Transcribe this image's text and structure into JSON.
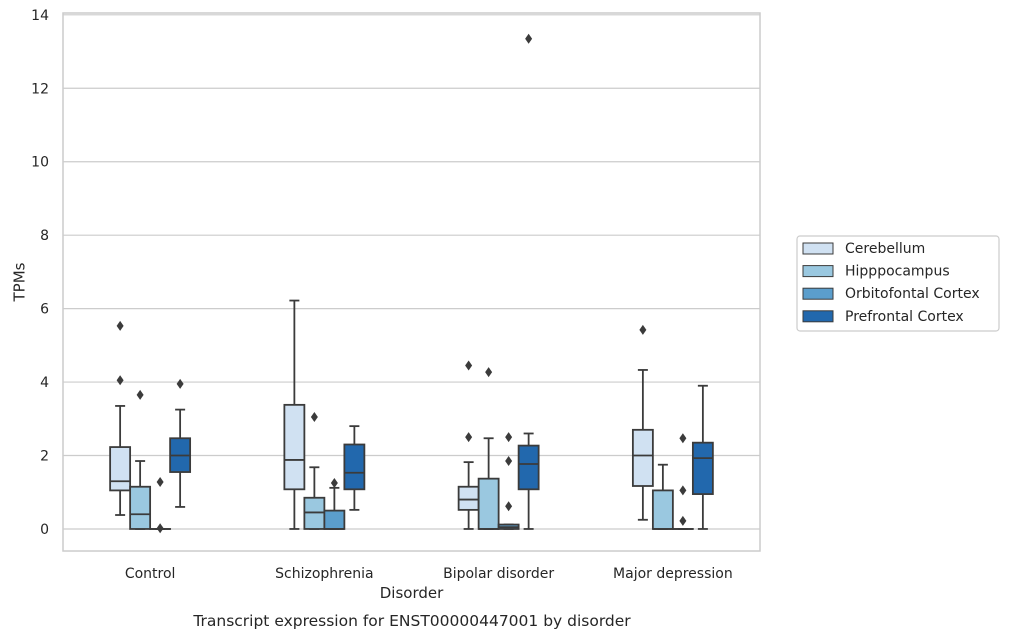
{
  "chart_data": {
    "type": "box",
    "caption": "Transcript expression for ENST00000447001 by disorder",
    "xlabel": "Disorder",
    "ylabel": "TPMs",
    "ylim": [
      -0.6,
      14.05
    ],
    "yticks": [
      0,
      2,
      4,
      6,
      8,
      10,
      12,
      14
    ],
    "grid": "horizontal",
    "legend_position": "right",
    "categories": [
      "Control",
      "Schizophrenia",
      "Bipolar disorder",
      "Major depression"
    ],
    "series": [
      {
        "name": "Cerebellum",
        "color": "#d0e1f2",
        "boxes": [
          {
            "whislo": 0.38,
            "q1": 1.05,
            "med": 1.3,
            "q3": 2.23,
            "whishi": 3.35,
            "fliers": [
              4.05,
              5.53
            ]
          },
          {
            "whislo": 0.0,
            "q1": 1.08,
            "med": 1.88,
            "q3": 3.38,
            "whishi": 6.22,
            "fliers": []
          },
          {
            "whislo": 0.0,
            "q1": 0.52,
            "med": 0.8,
            "q3": 1.15,
            "whishi": 1.82,
            "fliers": [
              2.5,
              4.45
            ]
          },
          {
            "whislo": 0.25,
            "q1": 1.17,
            "med": 2.0,
            "q3": 2.7,
            "whishi": 4.33,
            "fliers": [
              5.42
            ]
          }
        ]
      },
      {
        "name": "Hipppocampus",
        "color": "#9ac8e0",
        "boxes": [
          {
            "whislo": 0.0,
            "q1": 0.0,
            "med": 0.4,
            "q3": 1.15,
            "whishi": 1.85,
            "fliers": [
              3.65
            ]
          },
          {
            "whislo": 0.0,
            "q1": 0.0,
            "med": 0.45,
            "q3": 0.85,
            "whishi": 1.68,
            "fliers": [
              3.05
            ]
          },
          {
            "whislo": 0.0,
            "q1": 0.0,
            "med": 0.0,
            "q3": 1.37,
            "whishi": 2.47,
            "fliers": [
              4.27
            ]
          },
          {
            "whislo": 0.0,
            "q1": 0.0,
            "med": 0.0,
            "q3": 1.05,
            "whishi": 1.75,
            "fliers": []
          }
        ]
      },
      {
        "name": "Orbitofontal Cortex",
        "color": "#5b9ecc",
        "boxes": [
          {
            "whislo": 0.0,
            "q1": 0.0,
            "med": 0.0,
            "q3": 0.0,
            "whishi": 0.0,
            "fliers": [
              0.02,
              1.28
            ]
          },
          {
            "whislo": 0.0,
            "q1": 0.0,
            "med": 0.0,
            "q3": 0.5,
            "whishi": 1.12,
            "fliers": [
              1.25
            ]
          },
          {
            "whislo": 0.0,
            "q1": 0.0,
            "med": 0.05,
            "q3": 0.12,
            "whishi": 0.12,
            "fliers": [
              0.62,
              1.85,
              2.5
            ]
          },
          {
            "whislo": 0.0,
            "q1": 0.0,
            "med": 0.0,
            "q3": 0.0,
            "whishi": 0.0,
            "fliers": [
              0.22,
              1.05,
              2.47
            ]
          }
        ]
      },
      {
        "name": "Prefrontal Cortex",
        "color": "#2268ad",
        "boxes": [
          {
            "whislo": 0.6,
            "q1": 1.55,
            "med": 2.0,
            "q3": 2.47,
            "whishi": 3.25,
            "fliers": [
              3.95
            ]
          },
          {
            "whislo": 0.52,
            "q1": 1.08,
            "med": 1.53,
            "q3": 2.3,
            "whishi": 2.8,
            "fliers": []
          },
          {
            "whislo": 0.0,
            "q1": 1.08,
            "med": 1.77,
            "q3": 2.27,
            "whishi": 2.6,
            "fliers": [
              13.35
            ]
          },
          {
            "whislo": 0.0,
            "q1": 0.95,
            "med": 1.93,
            "q3": 2.35,
            "whishi": 3.9,
            "fliers": []
          }
        ]
      }
    ]
  }
}
